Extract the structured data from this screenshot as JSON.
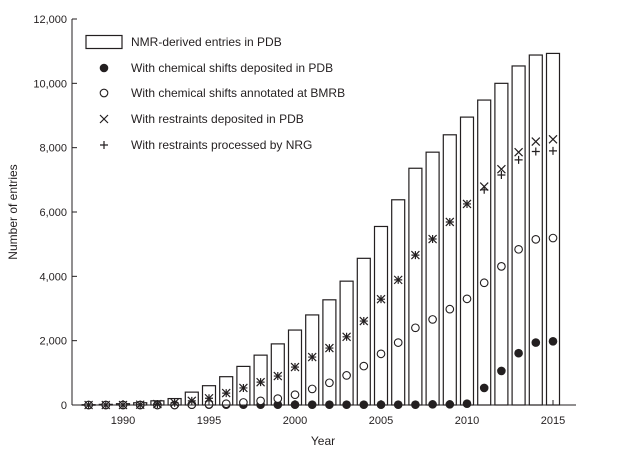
{
  "chart_data": {
    "type": "bar",
    "xlabel": "Year",
    "ylabel": "Number of entries",
    "ylim": [
      0,
      12000
    ],
    "yticks": [
      "0",
      "2,000",
      "4,000",
      "6,000",
      "8,000",
      "10,000",
      "12,000"
    ],
    "ytick_values": [
      0,
      2000,
      4000,
      6000,
      8000,
      10000,
      12000
    ],
    "xticks": [
      "1990",
      "1995",
      "2000",
      "2005",
      "2010",
      "2015"
    ],
    "xtick_values": [
      1990,
      1995,
      2000,
      2005,
      2010,
      2015
    ],
    "grid": false,
    "legend_position": "top-left",
    "x": [
      1988,
      1989,
      1990,
      1991,
      1992,
      1993,
      1994,
      1995,
      1996,
      1997,
      1998,
      1999,
      2000,
      2001,
      2002,
      2003,
      2004,
      2005,
      2006,
      2007,
      2008,
      2009,
      2010,
      2011,
      2012,
      2013,
      2014,
      2015
    ],
    "series": [
      {
        "name": "NMR-derived entries in PDB",
        "marker": "bar",
        "values": [
          10,
          20,
          40,
          70,
          130,
          200,
          400,
          600,
          880,
          1200,
          1550,
          1900,
          2330,
          2800,
          3270,
          3850,
          4560,
          5550,
          6380,
          7360,
          7860,
          8400,
          8950,
          9480,
          10000,
          10540,
          10880,
          10930
        ]
      },
      {
        "name": "With chemical shifts deposited in PDB",
        "marker": "filled-circle",
        "values": [
          0,
          0,
          0,
          0,
          0,
          0,
          10,
          10,
          10,
          10,
          10,
          10,
          10,
          10,
          10,
          10,
          10,
          10,
          10,
          10,
          20,
          20,
          40,
          530,
          1060,
          1610,
          1940,
          1980
        ]
      },
      {
        "name": "With chemical shifts annotated at BMRB",
        "marker": "open-circle",
        "values": [
          0,
          0,
          0,
          0,
          0,
          0,
          10,
          20,
          40,
          80,
          130,
          200,
          320,
          500,
          690,
          920,
          1210,
          1590,
          1940,
          2400,
          2660,
          2980,
          3300,
          3800,
          4310,
          4840,
          5150,
          5190
        ]
      },
      {
        "name": "With restraints deposited in PDB",
        "marker": "x",
        "values": [
          0,
          0,
          0,
          10,
          30,
          70,
          130,
          210,
          370,
          530,
          710,
          900,
          1180,
          1490,
          1770,
          2120,
          2610,
          3290,
          3890,
          4660,
          5160,
          5690,
          6250,
          6790,
          7330,
          7860,
          8190,
          8260
        ]
      },
      {
        "name": "With restraints processed by NRG",
        "marker": "plus",
        "values": [
          0,
          0,
          0,
          10,
          30,
          70,
          130,
          210,
          370,
          530,
          710,
          900,
          1180,
          1490,
          1770,
          2120,
          2610,
          3290,
          3890,
          4660,
          5160,
          5690,
          6250,
          6690,
          7150,
          7620,
          7880,
          7900
        ]
      }
    ]
  }
}
